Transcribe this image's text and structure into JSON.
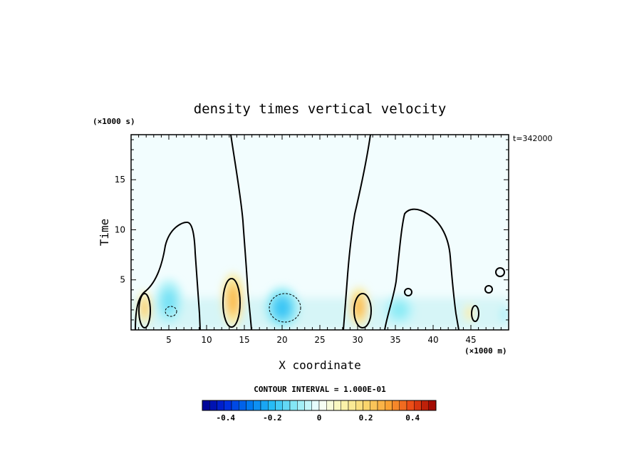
{
  "chart_data": {
    "type": "heatmap",
    "title": "density times vertical velocity",
    "xlabel": "X coordinate",
    "ylabel": "Time",
    "x_unit": "(×1000 m)",
    "y_unit": "(×1000 s)",
    "timestamp": "t=342000",
    "xlim": [
      0,
      50
    ],
    "ylim": [
      0,
      19.5
    ],
    "x_ticks": [
      5,
      10,
      15,
      20,
      25,
      30,
      35,
      40,
      45
    ],
    "y_ticks": [
      5,
      10,
      15
    ],
    "contour_interval_label": "CONTOUR INTERVAL = 1.000E-01",
    "colorbar": {
      "range": [
        -0.5,
        0.5
      ],
      "ticks": [
        "-0.4",
        "-0.2",
        "0",
        "0.2",
        "0.4"
      ],
      "tick_values": [
        -0.4,
        -0.2,
        0,
        0.2,
        0.4
      ],
      "n_levels": 32
    },
    "features": [
      {
        "kind": "positive",
        "x": 1.8,
        "t": 2.2,
        "rx": 0.9,
        "rt": 1.6,
        "value": 0.22
      },
      {
        "kind": "positive",
        "x": 13.5,
        "t": 3.0,
        "rx": 1.4,
        "rt": 2.6,
        "value": 0.25
      },
      {
        "kind": "positive",
        "x": 30.2,
        "t": 2.3,
        "rx": 1.3,
        "rt": 1.9,
        "value": 0.25
      },
      {
        "kind": "positive",
        "x": 44.8,
        "t": 1.7,
        "rx": 0.6,
        "rt": 0.9,
        "value": 0.15
      },
      {
        "kind": "negative",
        "x": 20.0,
        "t": 2.2,
        "rx": 2.2,
        "rt": 2.0,
        "value": -0.18
      },
      {
        "kind": "negative",
        "x": 5.0,
        "t": 2.8,
        "rx": 1.8,
        "rt": 2.2,
        "value": -0.12
      },
      {
        "kind": "negative",
        "x": 35.5,
        "t": 2.0,
        "rx": 2.0,
        "rt": 1.5,
        "value": -0.1
      },
      {
        "kind": "negative",
        "x": 49.5,
        "t": 1.5,
        "rx": 0.5,
        "rt": 0.9,
        "value": -0.1
      }
    ]
  }
}
